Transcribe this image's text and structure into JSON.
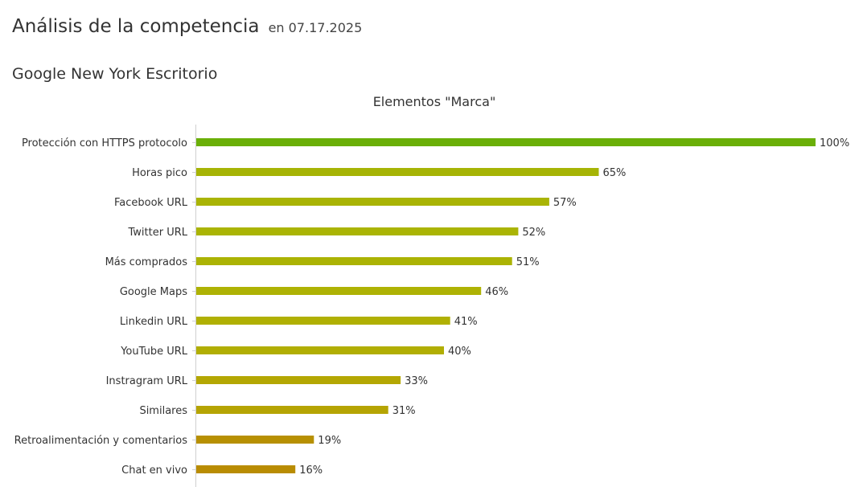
{
  "header": {
    "title": "Análisis de la competencia",
    "date": "en 07.17.2025"
  },
  "subtitle": "Google New York Escritorio",
  "chart_data": {
    "type": "bar",
    "orientation": "horizontal",
    "title": "Elementos \"Marca\"",
    "xlabel": "",
    "ylabel": "",
    "xlim": [
      0,
      100
    ],
    "grid": false,
    "legend": "none",
    "value_suffix": "%",
    "categories": [
      "Protección con HTTPS protocolo",
      "Horas pico",
      "Facebook URL",
      "Twitter URL",
      "Más comprados",
      "Google Maps",
      "Linkedin URL",
      "YouTube URL",
      "Instragram URL",
      "Similares",
      "Retroalimentación y comentarios",
      "Chat en vivo"
    ],
    "values": [
      100,
      65,
      57,
      52,
      51,
      46,
      41,
      40,
      33,
      31,
      19,
      16
    ],
    "colors": [
      "#6aaf08",
      "#a6b405",
      "#a9b405",
      "#aab404",
      "#abb304",
      "#aeb204",
      "#b0b003",
      "#b1ae03",
      "#b4a703",
      "#b5a403",
      "#b79002",
      "#b98c02"
    ]
  }
}
